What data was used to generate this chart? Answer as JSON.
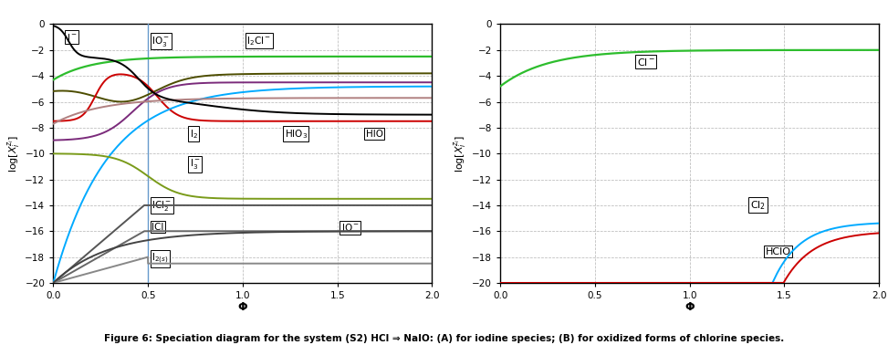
{
  "xlim": [
    0,
    2
  ],
  "ylim": [
    -20,
    0
  ],
  "yticks": [
    0,
    -2,
    -4,
    -6,
    -8,
    -10,
    -12,
    -14,
    -16,
    -18,
    -20
  ],
  "xticks": [
    0,
    0.5,
    1,
    1.5,
    2
  ],
  "xlabel": "Φ",
  "background_color": "#ffffff",
  "grid_color": "#aaaaaa",
  "vline_x": 0.5,
  "vline_color": "#6699cc",
  "figure_caption": "Figure 6: Speciation diagram for the system (S2) HCl ⇒ NaIO: (A) for iodine species; (B) for oxidized forms of chlorine species."
}
